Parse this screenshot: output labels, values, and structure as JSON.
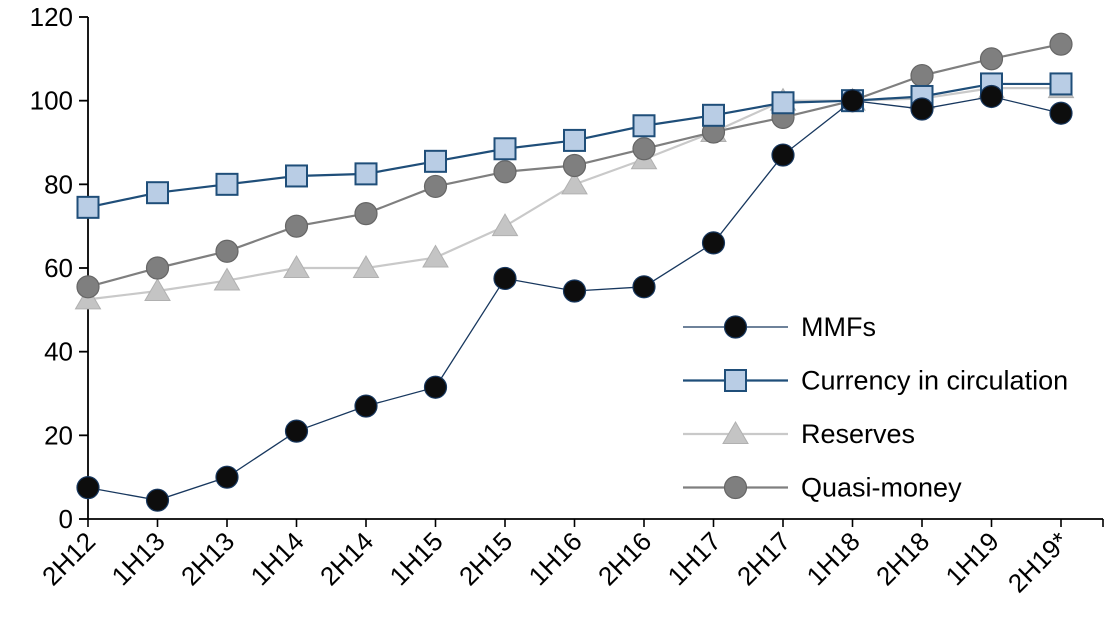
{
  "chart_data": {
    "type": "line",
    "title": "",
    "xlabel": "",
    "ylabel": "",
    "ylim": [
      0,
      120
    ],
    "yticks": [
      0,
      20,
      40,
      60,
      80,
      100,
      120
    ],
    "grid": false,
    "legend_position": "inside-right",
    "categories": [
      "2H12",
      "1H13",
      "2H13",
      "1H14",
      "2H14",
      "1H15",
      "2H15",
      "1H16",
      "2H16",
      "1H17",
      "2H17",
      "1H18",
      "2H18",
      "1H19",
      "2H19*"
    ],
    "series": [
      {
        "name": "MMFs",
        "marker": "circle",
        "line_color": "#17375e",
        "line_width": 1.3,
        "marker_fill": "#0d0d0d",
        "marker_stroke": "#17375e",
        "values": [
          7.5,
          4.5,
          10,
          21,
          27,
          31.5,
          57.5,
          54.5,
          55.5,
          66,
          87,
          100,
          98,
          101,
          97
        ]
      },
      {
        "name": "Currency in circulation",
        "marker": "square",
        "line_color": "#1f4e79",
        "line_width": 2.2,
        "marker_fill": "#b9cde5",
        "marker_stroke": "#1f4e79",
        "values": [
          74.5,
          78,
          80,
          82,
          82.5,
          85.5,
          88.5,
          90.5,
          94,
          96.5,
          99.5,
          100,
          101,
          104,
          104
        ]
      },
      {
        "name": "Reserves",
        "marker": "triangle",
        "line_color": "#c9c9c9",
        "line_width": 2.2,
        "marker_fill": "#c4c4c4",
        "marker_stroke": "#b0b0b0",
        "values": [
          52.5,
          54.5,
          57,
          60,
          60,
          62.5,
          70,
          80,
          86,
          92.5,
          100,
          100,
          100.5,
          103,
          103
        ]
      },
      {
        "name": "Quasi-money",
        "marker": "circle",
        "line_color": "#7f7f7f",
        "line_width": 2.2,
        "marker_fill": "#7f7f7f",
        "marker_stroke": "#666666",
        "values": [
          55.5,
          60,
          64,
          70,
          73,
          79.5,
          83,
          84.5,
          88.5,
          92.5,
          96,
          100,
          106,
          110,
          113.5
        ]
      }
    ],
    "axis_color": "#000000",
    "z_order": [
      2,
      3,
      1,
      0
    ]
  }
}
